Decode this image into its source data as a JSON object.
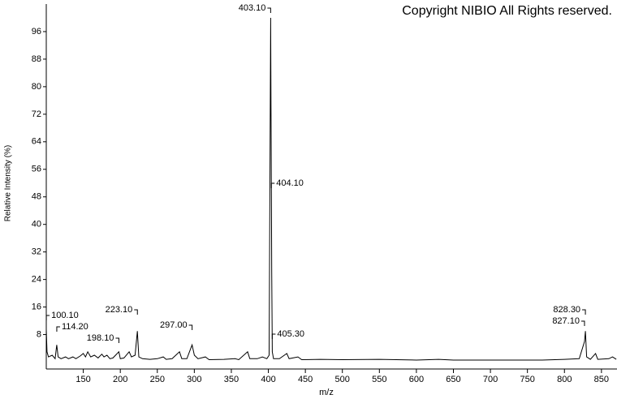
{
  "chart_data": {
    "type": "line",
    "copyright": "Copyright NIBIO All Rights reserved.",
    "x_label": "m/z",
    "y_label": "Relative Intensity (%)",
    "color": "#000000",
    "x": [
      100,
      101,
      103,
      108,
      112,
      114.2,
      116,
      120,
      126,
      130,
      136,
      140,
      146,
      150,
      153,
      156,
      160,
      165,
      170,
      175,
      178,
      182,
      186,
      190,
      198.1,
      200,
      205,
      212,
      215,
      220,
      223.1,
      225,
      230,
      240,
      250,
      258,
      262,
      270,
      280,
      283,
      290,
      297,
      300,
      305,
      315,
      320,
      340,
      355,
      360,
      372,
      375,
      385,
      392,
      398,
      401,
      403.1,
      403.6,
      404.1,
      404.6,
      405.3,
      407,
      415,
      425,
      428,
      440,
      445,
      470,
      500,
      550,
      600,
      630,
      650,
      700,
      770,
      800,
      820,
      827.1,
      828.3,
      830,
      835,
      842,
      845,
      860,
      865,
      870
    ],
    "values": [
      9.5,
      3,
      1.5,
      2,
      1,
      5,
      1.5,
      1,
      1.5,
      1,
      1.5,
      1,
      1.8,
      2.5,
      1.5,
      3,
      1.5,
      2,
      1.2,
      2.3,
      1.5,
      2,
      1,
      1.2,
      3,
      1,
      1.2,
      3,
      1.5,
      2,
      9,
      1.5,
      1,
      0.8,
      1,
      1.5,
      0.8,
      1,
      3,
      1,
      1,
      5,
      2,
      1,
      1.5,
      0.7,
      0.8,
      1,
      0.7,
      3,
      1,
      1,
      1.5,
      1,
      2,
      100,
      74,
      50,
      26,
      3,
      1,
      1,
      2.5,
      1,
      1.5,
      0.7,
      0.8,
      0.7,
      0.8,
      0.6,
      0.8,
      0.6,
      0.6,
      0.6,
      0.8,
      1,
      6,
      9,
      1.5,
      0.8,
      2.5,
      0.8,
      1,
      1.5,
      0.8
    ],
    "annotations": [
      {
        "x": 100.1,
        "label": "100.10"
      },
      {
        "x": 114.2,
        "label": "114.20"
      },
      {
        "x": 198.1,
        "label": "198.10"
      },
      {
        "x": 223.1,
        "label": "223.10"
      },
      {
        "x": 297.0,
        "label": "297.00"
      },
      {
        "x": 403.1,
        "label": "403.10"
      },
      {
        "x": 404.1,
        "label": "404.10"
      },
      {
        "x": 405.3,
        "label": "405.30"
      },
      {
        "x": 828.3,
        "label": "828.30"
      },
      {
        "x": 827.1,
        "label": "827.10"
      }
    ],
    "xlim": [
      100,
      871
    ],
    "ylim": [
      -2,
      104
    ],
    "xticks": [
      150,
      200,
      250,
      300,
      350,
      400,
      450,
      500,
      550,
      600,
      650,
      700,
      750,
      800,
      850
    ],
    "yticks": [
      8,
      16,
      24,
      32,
      40,
      48,
      56,
      64,
      72,
      80,
      88,
      96
    ]
  }
}
